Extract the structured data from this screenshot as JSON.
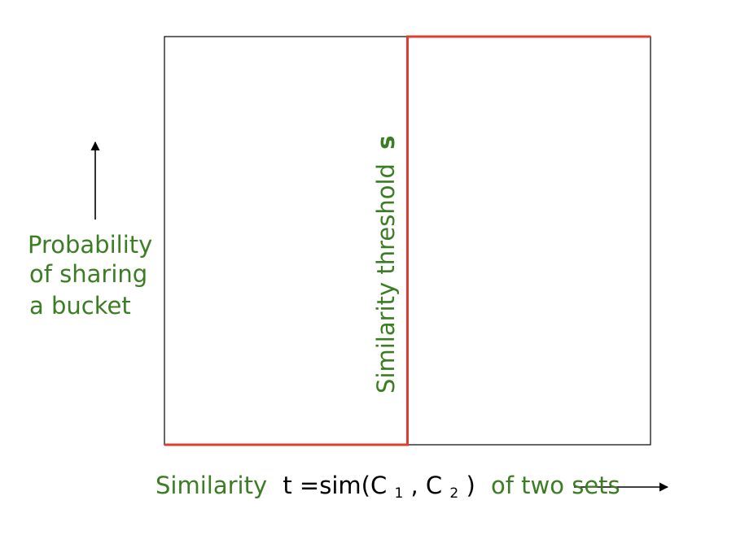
{
  "colors": {
    "accent_text": "#3a7d22",
    "step_line": "#e03c31",
    "frame": "#000000"
  },
  "y_axis": {
    "label_lines": [
      "Probability",
      "of sharing",
      "a bucket"
    ]
  },
  "x_axis": {
    "label_prefix": "Similarity",
    "formula_t": "t =sim(C",
    "sub_1": "1",
    "formula_mid": ", C",
    "sub_2": "2",
    "formula_close": ")",
    "label_suffix": "of two sets"
  },
  "threshold": {
    "label": "Similarity threshold",
    "symbol": "s"
  },
  "chart_data": {
    "type": "line",
    "series": [
      {
        "x": [
          0,
          0.5,
          0.5,
          1
        ],
        "y": [
          0,
          0,
          1,
          1
        ]
      }
    ],
    "xlim": [
      0,
      1
    ],
    "ylim": [
      0,
      1
    ]
  }
}
